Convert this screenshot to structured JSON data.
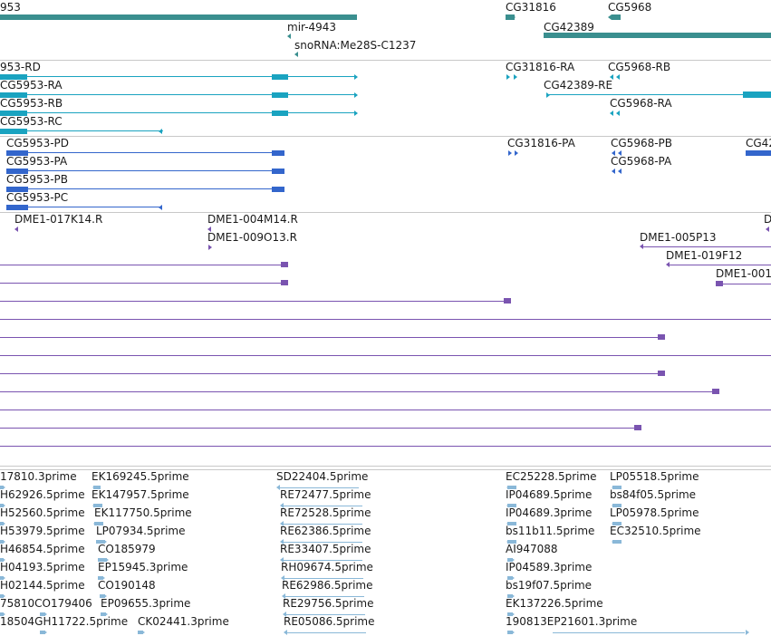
{
  "colors": {
    "ncrna": "#3a8f8f",
    "transcript": "#1aa3c0",
    "protein": "#3366cc",
    "clone": "#7a54b0",
    "est": "#8ab8d8",
    "separator": "#c8c8c8"
  },
  "tracks": {
    "genes": {
      "labels": [
        "953",
        "mir-4943",
        "snoRNA:Me28S-C1237",
        "CG31816",
        "CG5968",
        "CG42389"
      ]
    },
    "transcripts": {
      "labels": [
        "953-RD",
        "CG5953-RA",
        "CG5953-RB",
        "CG5953-RC",
        "CG31816-RA",
        "CG5968-RB",
        "CG42389-RE",
        "CG5968-RA"
      ]
    },
    "proteins": {
      "labels": [
        "CG5953-PD",
        "CG5953-PA",
        "CG5953-PB",
        "CG5953-PC",
        "CG31816-PA",
        "CG5968-PB",
        "CG5968-PA",
        "CG42"
      ]
    },
    "clones": {
      "labels": [
        "DME1-017K14.R",
        "DME1-004M14.R",
        "DME1-009O13.R",
        "D",
        "DME1-005P13",
        "DME1-019F12",
        "DME1-001"
      ]
    },
    "ests": {
      "labels": [
        "17810.3prime",
        "EK169245.5prime",
        "SD22404.5prime",
        "EC25228.5prime",
        "LP05518.5prime",
        "H62926.5prime",
        "EK147957.5prime",
        "RE72477.5prime",
        "IP04689.5prime",
        "bs84f05.5prime",
        "H52560.5prime",
        "EK117750.5prime",
        "RE72528.5prime",
        "IP04689.3prime",
        "LP05978.5prime",
        "H53979.5prime",
        "LP07934.5prime",
        "RE62386.5prime",
        "bs11b11.5prime",
        "EC32510.5prime",
        "H46854.5prime",
        "CO185979",
        "RE33407.5prime",
        "AI947088",
        "H04193.5prime",
        "EP15945.3prime",
        "RH09674.5prime",
        "IP04589.3prime",
        "H02144.5prime",
        "CO190148",
        "RE62986.5prime",
        "bs19f07.5prime",
        "75810CO179406",
        "EP09655.3prime",
        "RE29756.5prime",
        "EK137226.5prime",
        "18504GH11722.5prime",
        "CK02441.3prime",
        "RE05086.5prime",
        "190813EP21601.3prime"
      ]
    }
  }
}
